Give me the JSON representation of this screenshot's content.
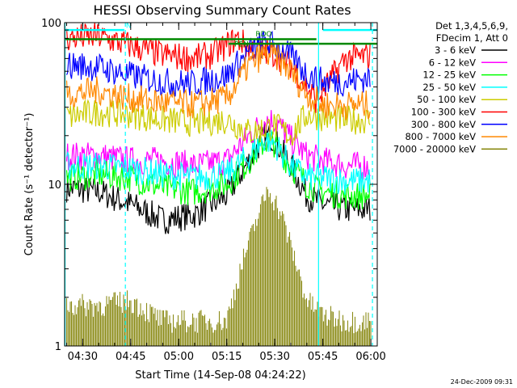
{
  "chart_data": {
    "type": "line",
    "title": "HESSI Observing Summary Count Rates",
    "xlabel": "Start Time (14-Sep-08 04:24:22)",
    "ylabel": "Count Rate (s⁻¹ detector⁻¹)",
    "y_scale": "log",
    "ylim": [
      1,
      100
    ],
    "xlim": [
      "04:24:22",
      "06:02:00"
    ],
    "x_tick_labels": [
      "04:30",
      "04:45",
      "05:00",
      "05:15",
      "05:30",
      "05:45",
      "06:00"
    ],
    "y_tick_labels": [
      "1",
      "10",
      "100"
    ],
    "legend_header": [
      "Det 1,3,4,5,6,9,",
      "FDecim 1, Att 0"
    ],
    "legend_position": "right, outside plot",
    "annotations": [
      "N",
      "RDO",
      "PEN"
    ],
    "footer_date": "24-Dec-2009 09:31",
    "series": [
      {
        "name": "3 - 6 keV",
        "color": "#000000",
        "x": [
          "04:25",
          "04:35",
          "04:45",
          "04:55",
          "05:05",
          "05:15",
          "05:22",
          "05:27",
          "05:30",
          "05:35",
          "05:40",
          "05:45",
          "05:52",
          "06:00"
        ],
        "y": [
          9.5,
          9.0,
          7.5,
          6.0,
          6.5,
          8.5,
          14.0,
          20.0,
          19.0,
          13.0,
          8.5,
          7.5,
          7.0,
          7.0
        ]
      },
      {
        "name": "6 - 12 keV",
        "color": "#ff00ff",
        "x": [
          "04:25",
          "04:35",
          "04:45",
          "04:55",
          "05:05",
          "05:15",
          "05:22",
          "05:27",
          "05:30",
          "05:35",
          "05:40",
          "05:45",
          "05:52",
          "06:00"
        ],
        "y": [
          15.0,
          15.0,
          14.0,
          14.0,
          13.0,
          14.0,
          20.0,
          25.0,
          25.0,
          19.0,
          15.0,
          14.0,
          13.0,
          13.0
        ]
      },
      {
        "name": "12 - 25 keV",
        "color": "#00ff00",
        "x": [
          "04:25",
          "04:35",
          "04:45",
          "04:55",
          "05:05",
          "05:15",
          "05:22",
          "05:27",
          "05:30",
          "05:35",
          "05:40",
          "05:45",
          "05:52",
          "06:00"
        ],
        "y": [
          11.0,
          11.5,
          11.0,
          9.5,
          9.0,
          10.0,
          14.0,
          18.5,
          18.0,
          13.0,
          10.0,
          9.0,
          8.5,
          8.5
        ]
      },
      {
        "name": "25 - 50 keV",
        "color": "#00ffff",
        "x": [
          "04:25",
          "04:35",
          "04:45",
          "04:55",
          "05:05",
          "05:15",
          "05:22",
          "05:27",
          "05:30",
          "05:35",
          "05:40",
          "05:45",
          "05:52",
          "06:00"
        ],
        "y": [
          13.0,
          13.0,
          12.5,
          11.5,
          11.0,
          11.5,
          15.0,
          19.0,
          18.0,
          13.0,
          11.0,
          11.0,
          10.5,
          10.5
        ]
      },
      {
        "name": "50 - 100 keV",
        "color": "#cccc00",
        "x": [
          "04:25",
          "04:35",
          "04:45",
          "04:55",
          "05:05",
          "05:15",
          "05:22",
          "05:27",
          "05:30",
          "05:35",
          "05:40",
          "05:45",
          "05:52",
          "06:00"
        ],
        "y": [
          26.0,
          28.0,
          27.0,
          25.0,
          24.0,
          25.0,
          21.0,
          22.0,
          23.0,
          20.0,
          27.0,
          26.0,
          25.0,
          25.0
        ]
      },
      {
        "name": "100 - 300 keV",
        "color": "#ff0000",
        "x": [
          "04:25",
          "04:35",
          "04:45",
          "04:55",
          "05:05",
          "05:10",
          "05:15",
          "05:18",
          "05:22",
          "05:27",
          "05:30",
          "05:35",
          "05:40",
          "05:43",
          "05:52",
          "06:00"
        ],
        "y": [
          80.0,
          82.0,
          72.0,
          63.0,
          60.0,
          63.0,
          72.0,
          80.0,
          70.0,
          66.0,
          64.0,
          55.0,
          40.0,
          33.0,
          60.0,
          62.0
        ]
      },
      {
        "name": "300 - 800 keV",
        "color": "#0000ff",
        "x": [
          "04:25",
          "04:35",
          "04:45",
          "04:55",
          "05:05",
          "05:15",
          "05:22",
          "05:27",
          "05:30",
          "05:35",
          "05:40",
          "05:45",
          "05:52",
          "06:00"
        ],
        "y": [
          55.0,
          53.0,
          47.0,
          43.0,
          42.0,
          47.0,
          66.0,
          75.0,
          72.0,
          62.0,
          48.0,
          43.0,
          43.0,
          46.0
        ]
      },
      {
        "name": "800 - 7000 keV",
        "color": "#ff8800",
        "x": [
          "04:25",
          "04:35",
          "04:45",
          "04:55",
          "05:05",
          "05:15",
          "05:22",
          "05:27",
          "05:30",
          "05:35",
          "05:40",
          "05:45",
          "05:52",
          "06:00"
        ],
        "y": [
          36.0,
          38.0,
          34.0,
          32.0,
          31.0,
          34.0,
          55.0,
          64.0,
          62.0,
          50.0,
          36.0,
          31.0,
          31.0,
          31.0
        ]
      },
      {
        "name": "7000 - 20000 keV",
        "color": "#808000",
        "x": [
          "04:25",
          "04:35",
          "04:45",
          "04:55",
          "05:05",
          "05:15",
          "05:20",
          "05:25",
          "05:28",
          "05:32",
          "05:36",
          "05:40",
          "05:45",
          "05:52",
          "06:00"
        ],
        "y": [
          1.5,
          1.5,
          1.6,
          1.2,
          1.2,
          1.2,
          2.8,
          5.5,
          8.0,
          5.5,
          3.0,
          1.6,
          1.3,
          1.2,
          1.2
        ]
      }
    ],
    "flag_lines": [
      {
        "label": "N",
        "color": "#00ffff",
        "y": 90,
        "x_start": "04:24:22",
        "x_end": "04:43:00"
      },
      {
        "label": "",
        "color": "#00ffff",
        "y": 90,
        "x_start": "05:45:00",
        "x_end": "06:02:00"
      },
      {
        "label": "",
        "color": "#008800",
        "y": 79,
        "x_start": "04:24:22",
        "x_end": "05:21:00"
      },
      {
        "label": "RDO",
        "color": "#008800",
        "y": 79,
        "x_start": "05:21:00",
        "x_end": "05:43:00"
      },
      {
        "label": "PEN",
        "color": "#008800",
        "y": 74,
        "x_start": "05:15:30",
        "x_end": "06:02:00"
      }
    ],
    "vertical_markers": [
      {
        "x": "04:24:30",
        "style": "solid"
      },
      {
        "x": "04:43:20",
        "style": "dashed"
      },
      {
        "x": "05:43:40",
        "style": "solid"
      },
      {
        "x": "06:00:30",
        "style": "dashed"
      }
    ]
  }
}
